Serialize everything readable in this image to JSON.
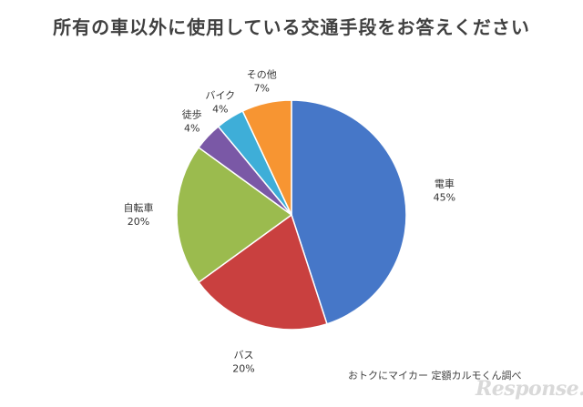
{
  "chart_data": {
    "type": "pie",
    "title": "所有の車以外に使用している交通手段をお答えください",
    "slices": [
      {
        "label": "電車",
        "value": 45,
        "value_label": "45%",
        "color": "#4677c8"
      },
      {
        "label": "バス",
        "value": 20,
        "value_label": "20%",
        "color": "#c9403f"
      },
      {
        "label": "自転車",
        "value": 20,
        "value_label": "20%",
        "color": "#9bbb4e"
      },
      {
        "label": "徒歩",
        "value": 4,
        "value_label": "4%",
        "color": "#7a58a6"
      },
      {
        "label": "バイク",
        "value": 4,
        "value_label": "4%",
        "color": "#3eaed8"
      },
      {
        "label": "その他",
        "value": 7,
        "value_label": "7%",
        "color": "#f79532"
      }
    ],
    "start": "top",
    "direction": "clockwise",
    "legend": "none",
    "labels": "outside"
  },
  "source": "おトクにマイカー 定額カルモくん調べ",
  "logo": "Response."
}
